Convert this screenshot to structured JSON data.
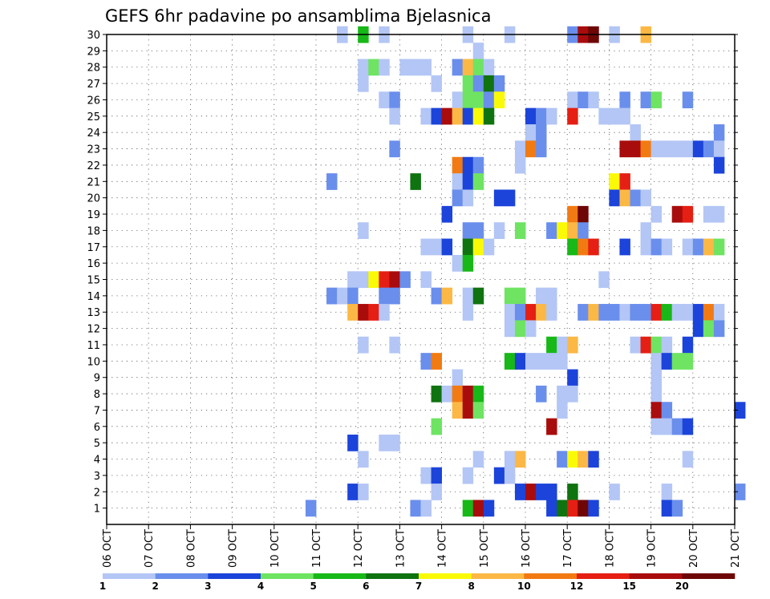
{
  "chart_data": {
    "type": "heatmap",
    "title": "GEFS 6hr padavine po ansamblima Bjelasnica",
    "xlabel": "",
    "ylabel": "",
    "x_ticks": [
      "06 OCT",
      "07 OCT",
      "08 OCT",
      "09 OCT",
      "10 OCT",
      "11 OCT",
      "12 OCT",
      "13 OCT",
      "14 OCT",
      "15 OCT",
      "16 OCT",
      "17 OCT",
      "18 OCT",
      "19 OCT",
      "20 OCT",
      "21 OCT"
    ],
    "x_range_days": [
      0,
      15
    ],
    "y_ticks": [
      "1",
      "2",
      "3",
      "4",
      "5",
      "6",
      "7",
      "8",
      "9",
      "10",
      "11",
      "12",
      "13",
      "14",
      "15",
      "16",
      "17",
      "18",
      "19",
      "20",
      "21",
      "22",
      "23",
      "24",
      "25",
      "26",
      "27",
      "28",
      "29",
      "30"
    ],
    "y_range": [
      0,
      30
    ],
    "grid": "dotted",
    "colorbar": {
      "labels": [
        "1",
        "2",
        "3",
        "4",
        "5",
        "6",
        "7",
        "8",
        "10",
        "12",
        "15",
        "20"
      ],
      "colors": [
        "#b3c6f5",
        "#6a8eec",
        "#1c44da",
        "#6ee462",
        "#17b817",
        "#0f7310",
        "#fafa07",
        "#fcb845",
        "#f27a12",
        "#e51f13",
        "#a90c0c",
        "#6e0606"
      ]
    },
    "cells": [
      [
        30,
        5.5,
        1
      ],
      [
        30,
        5.5,
        1
      ],
      [
        30,
        6.0,
        5
      ],
      [
        30,
        6.5,
        1
      ],
      [
        30,
        8.5,
        1
      ],
      [
        30,
        9.5,
        1
      ],
      [
        30,
        11.0,
        2
      ],
      [
        30,
        11.25,
        11
      ],
      [
        30,
        11.5,
        12
      ],
      [
        30,
        12.0,
        1
      ],
      [
        30,
        12.75,
        8
      ],
      [
        29,
        8.75,
        1
      ],
      [
        28,
        6.0,
        1
      ],
      [
        28,
        6.25,
        4
      ],
      [
        28,
        6.5,
        1
      ],
      [
        28,
        7.0,
        1
      ],
      [
        28,
        7.25,
        1
      ],
      [
        28,
        7.5,
        1
      ],
      [
        28,
        8.25,
        2
      ],
      [
        28,
        8.5,
        8
      ],
      [
        28,
        8.75,
        4
      ],
      [
        28,
        9.0,
        1
      ],
      [
        27,
        6.0,
        1
      ],
      [
        27,
        7.75,
        1
      ],
      [
        27,
        8.5,
        4
      ],
      [
        27,
        8.75,
        2
      ],
      [
        27,
        9.0,
        6
      ],
      [
        27,
        9.25,
        2
      ],
      [
        26,
        6.5,
        1
      ],
      [
        26,
        6.75,
        2
      ],
      [
        26,
        8.25,
        1
      ],
      [
        26,
        8.5,
        4
      ],
      [
        26,
        8.75,
        4
      ],
      [
        26,
        9.0,
        2
      ],
      [
        26,
        9.25,
        7
      ],
      [
        26,
        11.0,
        1
      ],
      [
        26,
        11.25,
        2
      ],
      [
        26,
        11.5,
        1
      ],
      [
        26,
        12.25,
        2
      ],
      [
        26,
        12.75,
        2
      ],
      [
        26,
        13.0,
        4
      ],
      [
        26,
        13.75,
        2
      ],
      [
        25,
        6.75,
        1
      ],
      [
        25,
        7.5,
        1
      ],
      [
        25,
        7.75,
        3
      ],
      [
        25,
        8.0,
        11
      ],
      [
        25,
        8.25,
        8
      ],
      [
        25,
        8.5,
        3
      ],
      [
        25,
        8.75,
        7
      ],
      [
        25,
        9.0,
        6
      ],
      [
        25,
        10.0,
        3
      ],
      [
        25,
        10.25,
        2
      ],
      [
        25,
        10.5,
        1
      ],
      [
        25,
        11.0,
        10
      ],
      [
        25,
        11.75,
        1
      ],
      [
        25,
        12.0,
        1
      ],
      [
        25,
        12.25,
        1
      ],
      [
        24,
        10.0,
        1
      ],
      [
        24,
        10.25,
        2
      ],
      [
        24,
        12.5,
        1
      ],
      [
        24,
        14.5,
        2
      ],
      [
        23,
        6.75,
        2
      ],
      [
        23,
        9.75,
        1
      ],
      [
        23,
        10.0,
        9
      ],
      [
        23,
        10.25,
        2
      ],
      [
        23,
        12.25,
        11
      ],
      [
        23,
        12.5,
        11
      ],
      [
        23,
        12.75,
        9
      ],
      [
        23,
        13.0,
        1
      ],
      [
        23,
        13.25,
        1
      ],
      [
        23,
        13.5,
        1
      ],
      [
        23,
        13.75,
        1
      ],
      [
        23,
        14.0,
        3
      ],
      [
        23,
        14.25,
        2
      ],
      [
        23,
        14.5,
        1
      ],
      [
        22,
        8.25,
        9
      ],
      [
        22,
        8.5,
        3
      ],
      [
        22,
        8.75,
        2
      ],
      [
        22,
        9.75,
        1
      ],
      [
        22,
        14.5,
        3
      ],
      [
        21,
        5.25,
        2
      ],
      [
        21,
        7.25,
        6
      ],
      [
        21,
        8.25,
        1
      ],
      [
        21,
        8.5,
        3
      ],
      [
        21,
        8.75,
        4
      ],
      [
        21,
        12.0,
        7
      ],
      [
        21,
        12.25,
        10
      ],
      [
        20,
        8.25,
        2
      ],
      [
        20,
        8.5,
        1
      ],
      [
        20,
        9.25,
        3
      ],
      [
        20,
        9.5,
        3
      ],
      [
        20,
        12.0,
        3
      ],
      [
        20,
        12.25,
        8
      ],
      [
        20,
        12.5,
        2
      ],
      [
        20,
        12.75,
        1
      ],
      [
        19,
        8.0,
        3
      ],
      [
        19,
        11.0,
        9
      ],
      [
        19,
        11.25,
        12
      ],
      [
        19,
        13.0,
        1
      ],
      [
        19,
        13.5,
        11
      ],
      [
        19,
        13.75,
        10
      ],
      [
        19,
        14.25,
        1
      ],
      [
        19,
        14.5,
        1
      ],
      [
        18,
        6.0,
        1
      ],
      [
        18,
        8.5,
        2
      ],
      [
        18,
        8.75,
        2
      ],
      [
        18,
        9.25,
        1
      ],
      [
        18,
        9.75,
        4
      ],
      [
        18,
        10.5,
        2
      ],
      [
        18,
        10.75,
        7
      ],
      [
        18,
        11.0,
        8
      ],
      [
        18,
        11.25,
        2
      ],
      [
        18,
        12.75,
        1
      ],
      [
        17,
        7.5,
        1
      ],
      [
        17,
        7.75,
        1
      ],
      [
        17,
        8.0,
        3
      ],
      [
        17,
        8.5,
        6
      ],
      [
        17,
        8.75,
        7
      ],
      [
        17,
        9.0,
        1
      ],
      [
        17,
        11.0,
        5
      ],
      [
        17,
        11.25,
        9
      ],
      [
        17,
        11.5,
        10
      ],
      [
        17,
        12.25,
        3
      ],
      [
        17,
        12.75,
        1
      ],
      [
        17,
        13.0,
        2
      ],
      [
        17,
        13.25,
        1
      ],
      [
        17,
        13.75,
        1
      ],
      [
        17,
        14.0,
        2
      ],
      [
        17,
        14.25,
        8
      ],
      [
        17,
        14.5,
        4
      ],
      [
        16,
        8.25,
        1
      ],
      [
        16,
        8.5,
        5
      ],
      [
        15,
        5.75,
        1
      ],
      [
        15,
        6.0,
        1
      ],
      [
        15,
        6.25,
        7
      ],
      [
        15,
        6.5,
        10
      ],
      [
        15,
        6.75,
        11
      ],
      [
        15,
        7.0,
        2
      ],
      [
        15,
        7.5,
        1
      ],
      [
        15,
        11.75,
        1
      ],
      [
        14,
        5.25,
        2
      ],
      [
        14,
        5.5,
        1
      ],
      [
        14,
        5.75,
        2
      ],
      [
        14,
        6.5,
        2
      ],
      [
        14,
        6.75,
        2
      ],
      [
        14,
        7.75,
        2
      ],
      [
        14,
        8.0,
        8
      ],
      [
        14,
        8.5,
        1
      ],
      [
        14,
        8.75,
        6
      ],
      [
        14,
        9.5,
        4
      ],
      [
        14,
        9.75,
        4
      ],
      [
        14,
        10.25,
        1
      ],
      [
        14,
        10.5,
        1
      ],
      [
        13,
        5.75,
        8
      ],
      [
        13,
        6.0,
        11
      ],
      [
        13,
        6.25,
        10
      ],
      [
        13,
        6.5,
        1
      ],
      [
        13,
        8.5,
        1
      ],
      [
        13,
        9.5,
        1
      ],
      [
        13,
        9.75,
        2
      ],
      [
        13,
        10.0,
        10
      ],
      [
        13,
        10.25,
        8
      ],
      [
        13,
        10.5,
        1
      ],
      [
        13,
        11.25,
        2
      ],
      [
        13,
        11.5,
        8
      ],
      [
        13,
        11.75,
        2
      ],
      [
        13,
        12.0,
        2
      ],
      [
        13,
        12.25,
        1
      ],
      [
        13,
        12.5,
        2
      ],
      [
        13,
        12.75,
        2
      ],
      [
        13,
        13.0,
        10
      ],
      [
        13,
        13.25,
        5
      ],
      [
        13,
        13.5,
        1
      ],
      [
        13,
        13.75,
        1
      ],
      [
        13,
        14.0,
        3
      ],
      [
        13,
        14.25,
        9
      ],
      [
        13,
        14.5,
        1
      ],
      [
        12,
        9.5,
        1
      ],
      [
        12,
        9.75,
        4
      ],
      [
        12,
        10.0,
        1
      ],
      [
        12,
        14.0,
        3
      ],
      [
        12,
        14.25,
        4
      ],
      [
        12,
        14.5,
        2
      ],
      [
        11,
        6.0,
        1
      ],
      [
        11,
        6.75,
        1
      ],
      [
        11,
        10.5,
        5
      ],
      [
        11,
        10.75,
        1
      ],
      [
        11,
        11.0,
        8
      ],
      [
        11,
        12.5,
        1
      ],
      [
        11,
        12.75,
        10
      ],
      [
        11,
        13.0,
        4
      ],
      [
        11,
        13.25,
        1
      ],
      [
        11,
        13.75,
        3
      ],
      [
        10,
        7.5,
        2
      ],
      [
        10,
        7.75,
        9
      ],
      [
        10,
        9.5,
        5
      ],
      [
        10,
        9.75,
        3
      ],
      [
        10,
        10.0,
        1
      ],
      [
        10,
        10.25,
        1
      ],
      [
        10,
        10.5,
        1
      ],
      [
        10,
        10.75,
        1
      ],
      [
        10,
        13.0,
        1
      ],
      [
        10,
        13.25,
        3
      ],
      [
        10,
        13.5,
        4
      ],
      [
        10,
        13.75,
        4
      ],
      [
        9,
        8.25,
        1
      ],
      [
        9,
        11.0,
        3
      ],
      [
        9,
        13.0,
        1
      ],
      [
        8,
        7.75,
        6
      ],
      [
        8,
        8.0,
        1
      ],
      [
        8,
        8.25,
        9
      ],
      [
        8,
        8.5,
        11
      ],
      [
        8,
        8.75,
        5
      ],
      [
        8,
        10.25,
        2
      ],
      [
        8,
        10.75,
        1
      ],
      [
        8,
        11.0,
        1
      ],
      [
        8,
        13.0,
        1
      ],
      [
        7,
        8.25,
        8
      ],
      [
        7,
        8.5,
        11
      ],
      [
        7,
        8.75,
        4
      ],
      [
        7,
        10.75,
        1
      ],
      [
        7,
        13.0,
        11
      ],
      [
        7,
        13.25,
        2
      ],
      [
        7,
        15.0,
        3
      ],
      [
        6,
        7.75,
        4
      ],
      [
        6,
        10.5,
        11
      ],
      [
        6,
        13.0,
        1
      ],
      [
        6,
        13.25,
        1
      ],
      [
        6,
        13.5,
        2
      ],
      [
        6,
        13.75,
        3
      ],
      [
        5,
        5.75,
        3
      ],
      [
        5,
        6.5,
        1
      ],
      [
        5,
        6.75,
        1
      ],
      [
        4,
        6.0,
        1
      ],
      [
        4,
        8.75,
        1
      ],
      [
        4,
        9.5,
        1
      ],
      [
        4,
        9.75,
        8
      ],
      [
        4,
        10.75,
        2
      ],
      [
        4,
        11.0,
        7
      ],
      [
        4,
        11.25,
        8
      ],
      [
        4,
        11.5,
        3
      ],
      [
        4,
        13.75,
        1
      ],
      [
        3,
        7.5,
        1
      ],
      [
        3,
        7.75,
        3
      ],
      [
        3,
        8.5,
        1
      ],
      [
        3,
        9.25,
        3
      ],
      [
        3,
        9.5,
        1
      ],
      [
        2,
        5.75,
        3
      ],
      [
        2,
        6.0,
        1
      ],
      [
        2,
        7.75,
        1
      ],
      [
        2,
        9.75,
        3
      ],
      [
        2,
        10.0,
        11
      ],
      [
        2,
        10.25,
        3
      ],
      [
        2,
        10.5,
        3
      ],
      [
        2,
        11.0,
        6
      ],
      [
        2,
        12.0,
        1
      ],
      [
        2,
        13.25,
        1
      ],
      [
        2,
        15.0,
        2
      ],
      [
        1,
        4.75,
        2
      ],
      [
        1,
        7.25,
        2
      ],
      [
        1,
        7.5,
        1
      ],
      [
        1,
        8.5,
        5
      ],
      [
        1,
        8.75,
        11
      ],
      [
        1,
        9.0,
        3
      ],
      [
        1,
        10.5,
        3
      ],
      [
        1,
        10.75,
        6
      ],
      [
        1,
        11.0,
        10
      ],
      [
        1,
        11.25,
        12
      ],
      [
        1,
        11.5,
        3
      ],
      [
        1,
        13.25,
        3
      ],
      [
        1,
        13.5,
        2
      ]
    ]
  }
}
